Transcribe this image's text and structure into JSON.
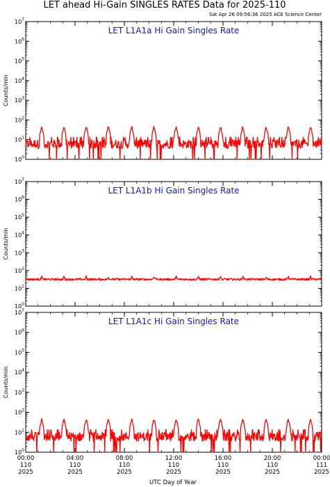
{
  "header": {
    "title": "LET ahead Hi-Gain SINGLES RATES Data for 2025-110",
    "timestamp": "Sat Apr 26 09:56:36 2025 ACE Science Center"
  },
  "chart_data": [
    {
      "type": "line",
      "title": "LET L1A1a Hi Gain Singles Rate",
      "ylabel": "Counts/min",
      "yscale": "log",
      "ylim": [
        1,
        10000000
      ],
      "ytick_exponents": [
        "0",
        "1",
        "2",
        "3",
        "4",
        "5",
        "6",
        "7"
      ],
      "xlim_hours": [
        0,
        24
      ],
      "baseline_level": 6,
      "spike_times_hours": [
        1.3,
        3.1,
        4.9,
        6.7,
        8.6,
        10.4,
        12.2,
        14.0,
        15.8,
        17.6,
        19.5,
        21.3,
        23.1
      ],
      "spike_level": 45,
      "series": [
        {
          "color": "#ff0000"
        }
      ]
    },
    {
      "type": "line",
      "title": "LET L1A1b Hi Gain Singles Rate",
      "ylabel": "Counts/min",
      "yscale": "log",
      "ylim": [
        1,
        10000000
      ],
      "ytick_exponents": [
        "0",
        "1",
        "2",
        "3",
        "4",
        "5",
        "6",
        "7"
      ],
      "xlim_hours": [
        0,
        24
      ],
      "baseline_level": 32,
      "spike_times_hours": [
        1.3,
        3.1,
        4.9,
        6.7,
        8.6,
        10.4,
        12.2,
        14.0,
        15.8,
        17.6,
        19.5,
        21.3,
        23.1
      ],
      "spike_level": 48,
      "series": [
        {
          "color": "#ff0000"
        }
      ]
    },
    {
      "type": "line",
      "title": "LET L1A1c Hi Gain Singles Rate",
      "ylabel": "Counts/min",
      "yscale": "log",
      "ylim": [
        1,
        10000000
      ],
      "ytick_exponents": [
        "0",
        "1",
        "2",
        "3",
        "4",
        "5",
        "6",
        "7"
      ],
      "xlim_hours": [
        0,
        24
      ],
      "baseline_level": 6,
      "spike_times_hours": [
        1.3,
        3.1,
        4.9,
        6.7,
        8.6,
        10.4,
        12.2,
        14.0,
        15.8,
        17.6,
        19.5,
        21.3,
        23.1
      ],
      "spike_level": 45,
      "series": [
        {
          "color": "#ff0000"
        }
      ]
    }
  ],
  "x_axis": {
    "label": "UTC Day of Year",
    "ticks": [
      {
        "hour": 0,
        "time": "00:00",
        "day": "110",
        "year": "2025"
      },
      {
        "hour": 4,
        "time": "04:00",
        "day": "110",
        "year": "2025"
      },
      {
        "hour": 8,
        "time": "08:00",
        "day": "110",
        "year": "2025"
      },
      {
        "hour": 12,
        "time": "12:00",
        "day": "110",
        "year": "2025"
      },
      {
        "hour": 16,
        "time": "16:00",
        "day": "110",
        "year": "2025"
      },
      {
        "hour": 20,
        "time": "20:00",
        "day": "110",
        "year": "2025"
      },
      {
        "hour": 24,
        "time": "00:00",
        "day": "111",
        "year": "2025"
      }
    ]
  },
  "colors": {
    "data": "#ff0000",
    "panel_title": "#1414d2",
    "axes": "#000000"
  }
}
